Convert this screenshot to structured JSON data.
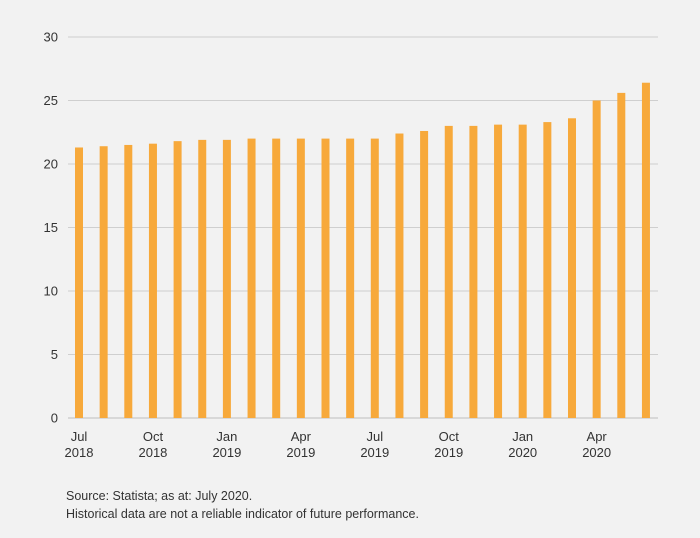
{
  "chart_data": {
    "type": "bar",
    "title": "",
    "xlabel": "",
    "ylabel": "",
    "ylim": [
      0,
      30
    ],
    "yticks": [
      0,
      5,
      10,
      15,
      20,
      25,
      30
    ],
    "grid": true,
    "bar_color": "#f7a93b",
    "categories": [
      "Jul 2018",
      "Aug 2018",
      "Sep 2018",
      "Oct 2018",
      "Nov 2018",
      "Dec 2018",
      "Jan 2019",
      "Feb 2019",
      "Mar 2019",
      "Apr 2019",
      "May 2019",
      "Jun 2019",
      "Jul 2019",
      "Aug 2019",
      "Sep 2019",
      "Oct 2019",
      "Nov 2019",
      "Dec 2019",
      "Jan 2020",
      "Feb 2020",
      "Mar 2020",
      "Apr 2020",
      "May 2020",
      "Jun 2020"
    ],
    "values": [
      21.3,
      21.4,
      21.5,
      21.6,
      21.8,
      21.9,
      21.9,
      22.0,
      22.0,
      22.0,
      22.0,
      22.0,
      22.0,
      22.4,
      22.6,
      23.0,
      23.0,
      23.1,
      23.1,
      23.3,
      23.6,
      25.0,
      25.6,
      26.4
    ],
    "x_tick_labels": [
      {
        "index": 0,
        "month": "Jul",
        "year": "2018"
      },
      {
        "index": 3,
        "month": "Oct",
        "year": "2018"
      },
      {
        "index": 6,
        "month": "Jan",
        "year": "2019"
      },
      {
        "index": 9,
        "month": "Apr",
        "year": "2019"
      },
      {
        "index": 12,
        "month": "Jul",
        "year": "2019"
      },
      {
        "index": 15,
        "month": "Oct",
        "year": "2019"
      },
      {
        "index": 18,
        "month": "Jan",
        "year": "2020"
      },
      {
        "index": 21,
        "month": "Apr",
        "year": "2020"
      }
    ]
  },
  "source": {
    "line1": "Source: Statista; as at: July 2020.",
    "line2": "Historical data are not a reliable indicator of future performance."
  }
}
